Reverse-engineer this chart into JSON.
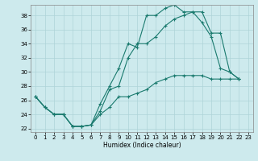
{
  "xlabel": "Humidex (Indice chaleur)",
  "bg_color": "#cdeaed",
  "grid_color": "#aed4d8",
  "line_color": "#1a7a6e",
  "xlim": [
    -0.5,
    23.5
  ],
  "ylim": [
    21.5,
    39.5
  ],
  "xticks": [
    0,
    1,
    2,
    3,
    4,
    5,
    6,
    7,
    8,
    9,
    10,
    11,
    12,
    13,
    14,
    15,
    16,
    17,
    18,
    19,
    20,
    21,
    22,
    23
  ],
  "yticks": [
    22,
    24,
    26,
    28,
    30,
    32,
    34,
    36,
    38
  ],
  "line1_x": [
    0,
    1,
    2,
    3,
    4,
    5,
    6,
    7,
    8,
    9,
    10,
    11,
    12,
    13,
    14,
    15,
    16,
    17,
    18,
    19,
    20,
    21,
    22
  ],
  "line1_y": [
    26.5,
    25.0,
    24.0,
    24.0,
    22.3,
    22.3,
    22.5,
    25.5,
    28.0,
    30.5,
    34.0,
    33.5,
    38.0,
    38.0,
    39.0,
    39.5,
    38.5,
    38.5,
    37.0,
    35.0,
    30.5,
    30.0,
    29.0
  ],
  "line2_x": [
    0,
    1,
    2,
    3,
    4,
    5,
    6,
    7,
    8,
    9,
    10,
    11,
    12,
    13,
    14,
    15,
    16,
    17,
    18,
    19,
    20,
    21,
    22
  ],
  "line2_y": [
    26.5,
    25.0,
    24.0,
    24.0,
    22.3,
    22.3,
    22.5,
    24.5,
    27.5,
    28.0,
    32.0,
    34.0,
    34.0,
    35.0,
    36.5,
    37.5,
    38.0,
    38.5,
    38.5,
    35.5,
    35.5,
    30.0,
    29.0
  ],
  "line3_x": [
    0,
    1,
    2,
    3,
    4,
    5,
    6,
    7,
    8,
    9,
    10,
    11,
    12,
    13,
    14,
    15,
    16,
    17,
    18,
    19,
    20,
    21,
    22
  ],
  "line3_y": [
    26.5,
    25.0,
    24.0,
    24.0,
    22.3,
    22.3,
    22.5,
    24.0,
    25.0,
    26.5,
    26.5,
    27.0,
    27.5,
    28.5,
    29.0,
    29.5,
    29.5,
    29.5,
    29.5,
    29.0,
    29.0,
    29.0,
    29.0
  ]
}
